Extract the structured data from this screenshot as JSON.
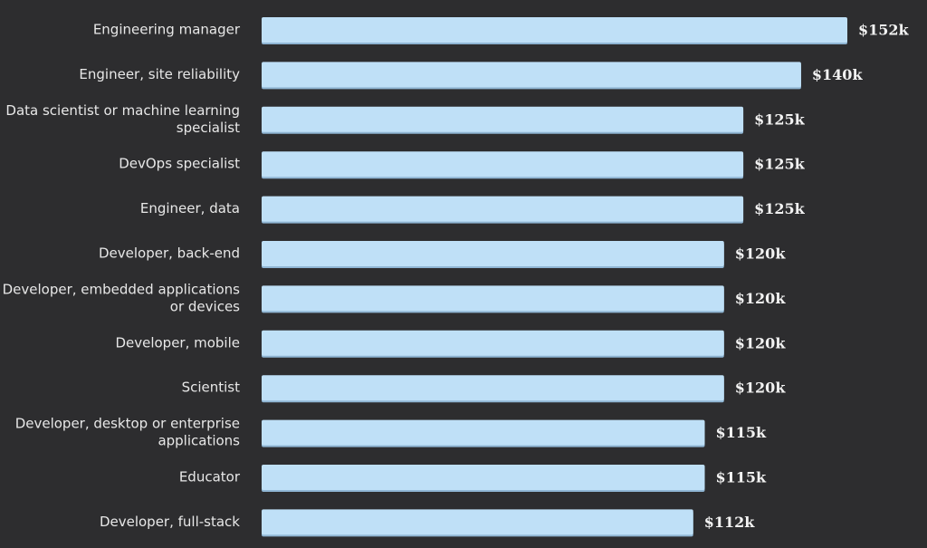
{
  "chart_data": {
    "type": "bar",
    "orientation": "horizontal",
    "categories": [
      "Engineering manager",
      "Engineer, site reliability",
      "Data scientist or machine learning specialist",
      "DevOps specialist",
      "Engineer, data",
      "Developer, back-end",
      "Developer, embedded applications or devices",
      "Developer, mobile",
      "Scientist",
      "Developer, desktop or enterprise applications",
      "Educator",
      "Developer, full-stack"
    ],
    "category_lines": [
      [
        "Engineering manager"
      ],
      [
        "Engineer, site reliability"
      ],
      [
        "Data scientist or machine learning",
        "specialist"
      ],
      [
        "DevOps specialist"
      ],
      [
        "Engineer, data"
      ],
      [
        "Developer, back-end"
      ],
      [
        "Developer, embedded applications",
        "or devices"
      ],
      [
        "Developer, mobile"
      ],
      [
        "Scientist"
      ],
      [
        "Developer, desktop or enterprise",
        "applications"
      ],
      [
        "Educator"
      ],
      [
        "Developer, full-stack"
      ]
    ],
    "values": [
      152,
      140,
      125,
      125,
      125,
      120,
      120,
      120,
      120,
      115,
      115,
      112
    ],
    "value_labels": [
      "$152k",
      "$140k",
      "$125k",
      "$125k",
      "$125k",
      "$120k",
      "$120k",
      "$120k",
      "$120k",
      "$115k",
      "$115k",
      "$112k"
    ],
    "unit": "$k",
    "xlim": [
      0,
      152
    ],
    "grid": false,
    "legend": "none",
    "colors": {
      "background": "#2d2d2f",
      "bar": "#bfe0f7",
      "bar_shadow": "#8fb5d3",
      "label": "#e8e8e8",
      "value": "#f2f2f2"
    }
  }
}
